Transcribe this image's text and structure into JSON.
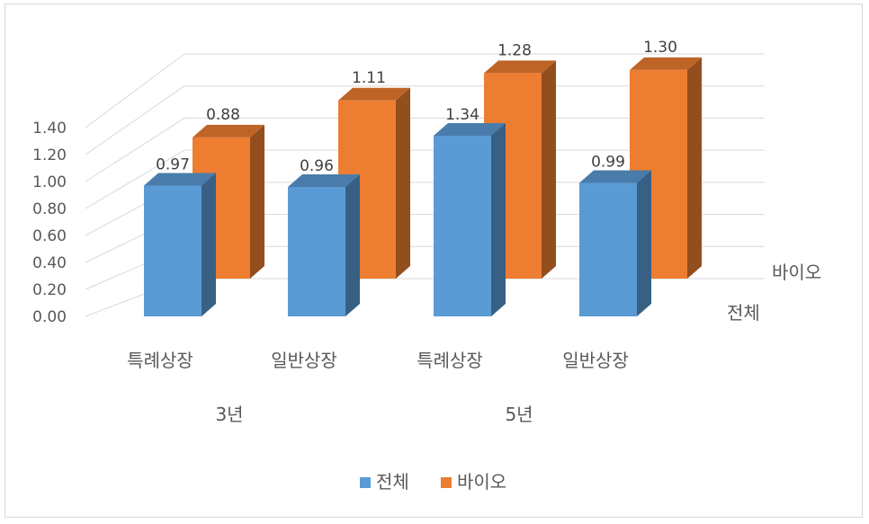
{
  "chart_data": {
    "type": "bar",
    "subtype": "3d-clustered-column",
    "groups": [
      {
        "label": "3년",
        "categories": [
          "특례상장",
          "일반상장"
        ]
      },
      {
        "label": "5년",
        "categories": [
          "특례상장",
          "일반상장"
        ]
      }
    ],
    "categories": [
      "특례상장",
      "일반상장",
      "특례상장",
      "일반상장"
    ],
    "series": [
      {
        "name": "전체",
        "values": [
          0.97,
          0.96,
          1.34,
          0.99
        ],
        "labels": [
          "0.97",
          "0.96",
          "1.34",
          "0.99"
        ],
        "color": "#5b9bd5"
      },
      {
        "name": "바이오",
        "values": [
          0.88,
          1.11,
          1.28,
          1.3
        ],
        "labels": [
          "0.88",
          "1.11",
          "1.28",
          "1.30"
        ],
        "color": "#ed7d31"
      }
    ],
    "depth_axis_labels": [
      "전체",
      "바이오"
    ],
    "ylim": [
      0,
      1.4
    ],
    "yticks": [
      "0.00",
      "0.20",
      "0.40",
      "0.60",
      "0.80",
      "1.00",
      "1.20",
      "1.40"
    ],
    "grid": true,
    "legend_position": "bottom"
  }
}
